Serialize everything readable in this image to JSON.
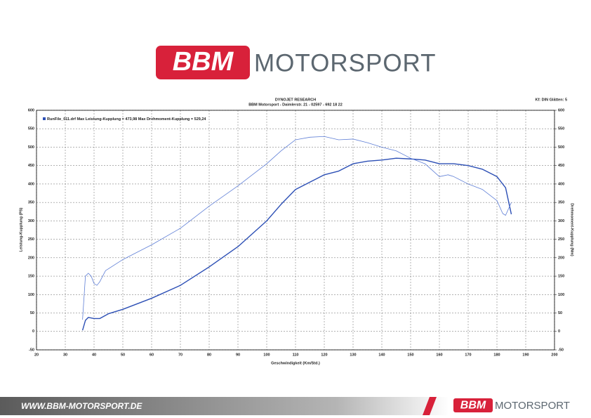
{
  "header": {
    "brand": "BBM",
    "text": "MOTORSPORT"
  },
  "chart_data": {
    "type": "line",
    "title": "DYNOJET RESEARCH",
    "subtitle": "BBM Motorsport - Daimlerstr. 21 - 02597 - 692 18 22",
    "annotation": "Kf: DIN  Glätten: 5",
    "legend_text": "RunFile_011.drf Max Leistung-Kupplung = 473,98    Max Drehmoment-Kupplung = 529,24",
    "x_label": "Geschwindigkeit (Km/Std.)",
    "y_label": "Leistung-Kupplung (PS)",
    "y2_label": "Drehmoment-Kupplung (Nm)",
    "xlim": [
      20,
      200
    ],
    "xticks": [
      20,
      30,
      40,
      50,
      60,
      70,
      80,
      90,
      100,
      110,
      120,
      130,
      140,
      150,
      160,
      170,
      180,
      190,
      200
    ],
    "ylim": [
      -50,
      600
    ],
    "yticks": [
      -50,
      0,
      50,
      100,
      150,
      200,
      250,
      300,
      350,
      400,
      450,
      500,
      550,
      600
    ],
    "y2lim": [
      -50,
      600
    ],
    "y2ticks": [
      -50,
      0,
      50,
      100,
      150,
      200,
      250,
      300,
      350,
      400,
      450,
      500,
      550,
      600
    ],
    "grid": true,
    "series": [
      {
        "color": "#2c4fb5",
        "width": 1.4,
        "axis": "y",
        "x": [
          36,
          37,
          38,
          40,
          42,
          45,
          50,
          60,
          70,
          80,
          90,
          100,
          105,
          110,
          115,
          120,
          125,
          130,
          135,
          140,
          145,
          150,
          155,
          160,
          165,
          170,
          175,
          180,
          183,
          185
        ],
        "values": [
          3,
          30,
          38,
          35,
          35,
          48,
          60,
          90,
          125,
          175,
          230,
          300,
          345,
          385,
          405,
          425,
          435,
          455,
          462,
          465,
          470,
          468,
          465,
          455,
          455,
          450,
          440,
          420,
          390,
          318
        ]
      },
      {
        "color": "#5f7fd6",
        "width": 0.8,
        "axis": "y2",
        "x": [
          36,
          37,
          38,
          39,
          40,
          41,
          42,
          44,
          50,
          60,
          70,
          80,
          90,
          100,
          105,
          110,
          115,
          120,
          125,
          130,
          135,
          140,
          145,
          150,
          155,
          160,
          163,
          165,
          170,
          175,
          180,
          182,
          183,
          185
        ],
        "values": [
          32,
          150,
          158,
          150,
          130,
          125,
          135,
          165,
          195,
          235,
          280,
          340,
          395,
          455,
          490,
          520,
          527,
          529,
          520,
          522,
          512,
          500,
          490,
          470,
          455,
          420,
          425,
          420,
          400,
          385,
          355,
          320,
          315,
          350
        ]
      }
    ]
  },
  "footer": {
    "url": "WWW.BBM-MOTORSPORT.DE",
    "brand": "BBM",
    "text": "MOTORSPORT"
  }
}
